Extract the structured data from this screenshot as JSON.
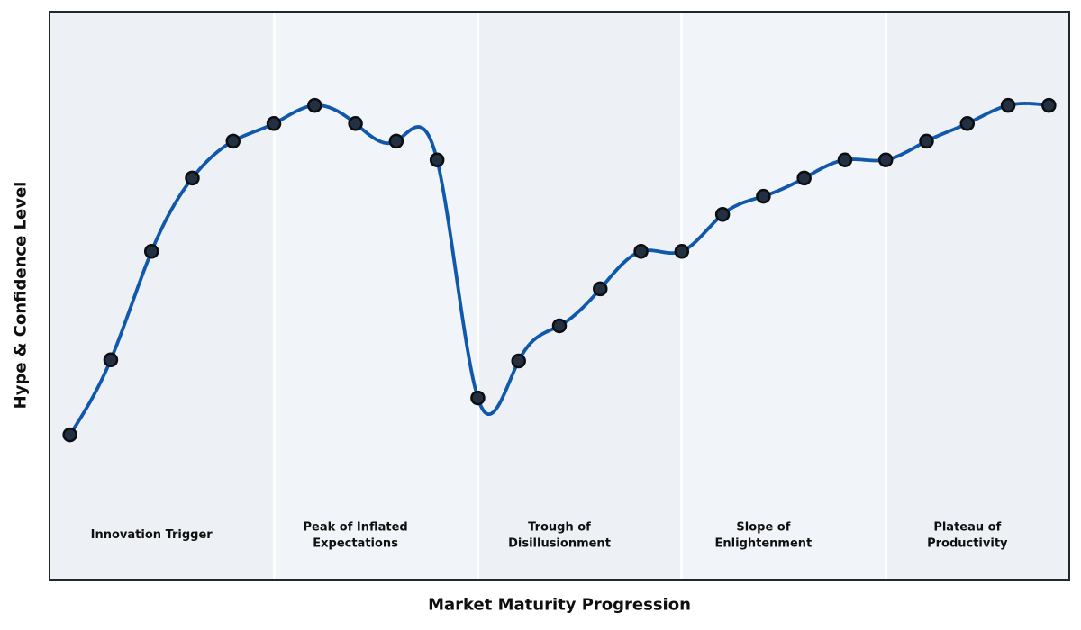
{
  "colors": {
    "line": "#1058ab",
    "marker_fill": "#233042",
    "marker_edge": "#0b0d10",
    "band_even": "#edf1f6",
    "band_odd": "#f1f4f8",
    "separator": "#ffffff",
    "frame": "#24272b",
    "text": "#0f0f0f",
    "background": "#ffffff"
  },
  "chart_data": {
    "type": "line",
    "title": "",
    "xlabel": "Market Maturity Progression",
    "ylabel": "Hype & Confidence Level",
    "smoothing": "cubic-spline",
    "markers": true,
    "grid": false,
    "axis_ticks": "none",
    "xlim": [
      -0.5,
      24.5
    ],
    "ylim": [
      0,
      100
    ],
    "x": [
      0,
      1,
      2,
      3,
      4,
      5,
      6,
      7,
      8,
      9,
      10,
      11,
      12,
      13,
      14,
      15,
      16,
      17,
      18,
      19,
      20,
      21,
      22,
      23,
      24
    ],
    "values": [
      25.5,
      38.7,
      57.8,
      70.7,
      77.2,
      80.3,
      83.5,
      80.3,
      77.2,
      73.9,
      32.0,
      38.5,
      44.7,
      51.2,
      57.8,
      57.8,
      64.3,
      67.5,
      70.7,
      73.9,
      73.9,
      77.2,
      80.3,
      83.5,
      83.5
    ],
    "phase_boundaries_x": [
      5,
      10,
      15,
      20
    ],
    "phases": [
      {
        "label": "Innovation Trigger",
        "x": 2
      },
      {
        "label": "Peak of Inflated\nExpectations",
        "x": 7
      },
      {
        "label": "Trough of\nDisillusionment",
        "x": 12
      },
      {
        "label": "Slope of\nEnlightenment",
        "x": 17
      },
      {
        "label": "Plateau of\nProductivity",
        "x": 22
      }
    ]
  }
}
